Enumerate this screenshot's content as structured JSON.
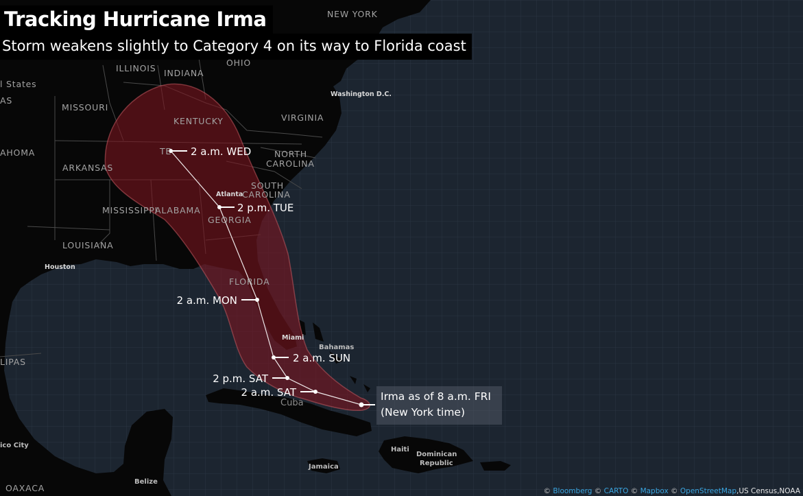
{
  "header": {
    "title": "Tracking Hurricane Irma",
    "subtitle": "Storm weakens slightly to Category 4 on its way to Florida coast"
  },
  "callout": {
    "line1": "Irma as of 8 a.m. FRI",
    "line2": "(New York time)"
  },
  "track_points": [
    {
      "label": "2 a.m. WED"
    },
    {
      "label": "2 p.m. TUE"
    },
    {
      "label": "2 a.m. MON"
    },
    {
      "label": "2 a.m. SUN"
    },
    {
      "label": "2 p.m. SAT"
    },
    {
      "label": "2 a.m. SAT"
    }
  ],
  "map_labels": {
    "new_york": "NEW YORK",
    "ohio": "OHIO",
    "illinois": "ILLINOIS",
    "indiana": "INDIANA",
    "united_states": "l States",
    "as": "AS",
    "missouri": "MISSOURI",
    "kentucky": "KENTUCKY",
    "virginia": "VIRGINIA",
    "washington": "Washington D.C.",
    "oklahoma": "AHOMA",
    "tennessee": "TE",
    "arkansas": "ARKANSAS",
    "north": "NORTH",
    "carolina": "CAROLINA",
    "south": "SOUTH",
    "south_carolina": "CAROLINA",
    "atlanta": "Atlanta",
    "mississippi": "MISSISSIPPI",
    "alabama": "ALABAMA",
    "georgia": "GEORGIA",
    "louisiana": "LOUISIANA",
    "houston": "Houston",
    "florida": "FLORIDA",
    "miami": "Miami",
    "bahamas": "Bahamas",
    "cuba": "Cuba",
    "tamaulipas": "LIPAS",
    "mexico_city": "ico City",
    "haiti": "Haiti",
    "dominican": "Dominican",
    "republic": "Republic",
    "jamaica": "Jamaica",
    "belize": "Belize",
    "oaxaca": "OAXACA"
  },
  "attribution": {
    "mark": "©",
    "bloomberg": "Bloomberg",
    "carto": "CARTO",
    "mapbox": "Mapbox",
    "osm": "OpenStreetMap",
    "rest": ",US Census,NOAA"
  },
  "colors": {
    "ocean": "#1c2530",
    "land": "#070707",
    "cone_fill": "#8a1a24",
    "track_line": "#ffffff"
  }
}
